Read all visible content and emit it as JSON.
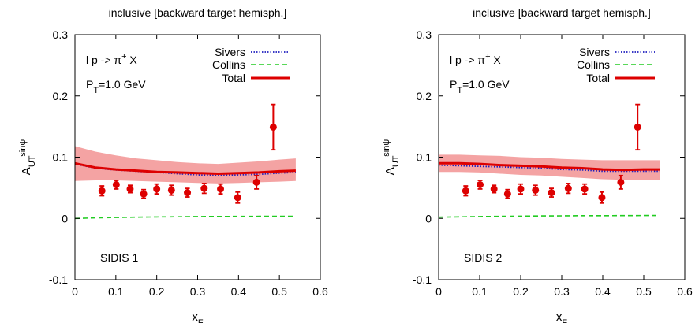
{
  "chart_data": [
    {
      "type": "line",
      "title": "inclusive [backward target hemisph.]",
      "xlabel": "x",
      "xlabel_sub": "F",
      "ylabel": "A",
      "ylabel_sup": "sinψ",
      "ylabel_sub": "UT",
      "xlim": [
        0,
        0.6
      ],
      "ylim": [
        -0.1,
        0.3
      ],
      "xticks": [
        "0",
        "0.1",
        "0.2",
        "0.3",
        "0.4",
        "0.5",
        "0.6"
      ],
      "yticks": [
        "-0.1",
        "0",
        "0.1",
        "0.2",
        "0.3"
      ],
      "legend_position": "top-right",
      "annotations": {
        "reaction": "l p -> π",
        "reaction_sup": "+",
        "reaction_tail": " X",
        "pt_label": "P",
        "pt_sub": "T",
        "pt_value": "=1.0 GeV",
        "dataset": "SIDIS 1"
      },
      "x": [
        0.0,
        0.05,
        0.1,
        0.15,
        0.2,
        0.25,
        0.3,
        0.35,
        0.4,
        0.45,
        0.5,
        0.54
      ],
      "band": {
        "color": "#f4a3a3",
        "upper": [
          0.118,
          0.109,
          0.103,
          0.098,
          0.095,
          0.092,
          0.09,
          0.089,
          0.091,
          0.093,
          0.096,
          0.098
        ],
        "lower": [
          0.061,
          0.062,
          0.062,
          0.061,
          0.06,
          0.059,
          0.058,
          0.057,
          0.058,
          0.059,
          0.06,
          0.061
        ]
      },
      "series": [
        {
          "name": "Sivers",
          "color": "#1f1fbf",
          "style": "dotted",
          "values": [
            0.089,
            0.082,
            0.079,
            0.077,
            0.075,
            0.073,
            0.071,
            0.07,
            0.071,
            0.072,
            0.074,
            0.075
          ]
        },
        {
          "name": "Collins",
          "color": "#22cc22",
          "style": "dashed",
          "values": [
            0.0,
            0.0008,
            0.0015,
            0.002,
            0.0024,
            0.0027,
            0.003,
            0.0032,
            0.0033,
            0.0034,
            0.0035,
            0.0035
          ]
        },
        {
          "name": "Total",
          "color": "#dd0000",
          "style": "solid",
          "values": [
            0.09,
            0.083,
            0.08,
            0.078,
            0.076,
            0.075,
            0.074,
            0.073,
            0.074,
            0.075,
            0.077,
            0.078
          ]
        }
      ],
      "points": {
        "color": "#dd0000",
        "x": [
          0.066,
          0.101,
          0.135,
          0.168,
          0.2,
          0.236,
          0.275,
          0.316,
          0.356,
          0.398,
          0.444,
          0.485
        ],
        "y": [
          0.045,
          0.055,
          0.048,
          0.04,
          0.048,
          0.046,
          0.042,
          0.049,
          0.048,
          0.034,
          0.059,
          0.149
        ],
        "err": [
          0.008,
          0.007,
          0.006,
          0.007,
          0.008,
          0.008,
          0.007,
          0.008,
          0.008,
          0.009,
          0.011,
          0.037
        ]
      }
    },
    {
      "type": "line",
      "title": "inclusive [backward target hemisph.]",
      "xlabel": "x",
      "xlabel_sub": "F",
      "ylabel": "A",
      "ylabel_sup": "sinψ",
      "ylabel_sub": "UT",
      "xlim": [
        0,
        0.6
      ],
      "ylim": [
        -0.1,
        0.3
      ],
      "xticks": [
        "0",
        "0.1",
        "0.2",
        "0.3",
        "0.4",
        "0.5",
        "0.6"
      ],
      "yticks": [
        "-0.1",
        "0",
        "0.1",
        "0.2",
        "0.3"
      ],
      "legend_position": "top-right",
      "annotations": {
        "reaction": "l p -> π",
        "reaction_sup": "+",
        "reaction_tail": " X",
        "pt_label": "P",
        "pt_sub": "T",
        "pt_value": "=1.0 GeV",
        "dataset": "SIDIS 2"
      },
      "x": [
        0.0,
        0.05,
        0.1,
        0.15,
        0.2,
        0.25,
        0.3,
        0.35,
        0.4,
        0.45,
        0.5,
        0.54
      ],
      "band": {
        "color": "#f4a3a3",
        "upper": [
          0.104,
          0.104,
          0.103,
          0.102,
          0.1,
          0.099,
          0.097,
          0.096,
          0.095,
          0.095,
          0.095,
          0.095
        ],
        "lower": [
          0.076,
          0.076,
          0.075,
          0.073,
          0.071,
          0.07,
          0.068,
          0.066,
          0.064,
          0.063,
          0.063,
          0.063
        ]
      },
      "series": [
        {
          "name": "Sivers",
          "color": "#1f1fbf",
          "style": "dotted",
          "values": [
            0.087,
            0.086,
            0.085,
            0.084,
            0.083,
            0.082,
            0.08,
            0.079,
            0.077,
            0.077,
            0.077,
            0.077
          ]
        },
        {
          "name": "Collins",
          "color": "#22cc22",
          "style": "dashed",
          "values": [
            0.002,
            0.0025,
            0.003,
            0.0034,
            0.0037,
            0.004,
            0.0042,
            0.0044,
            0.0045,
            0.0046,
            0.0047,
            0.0047
          ]
        },
        {
          "name": "Total",
          "color": "#dd0000",
          "style": "solid",
          "values": [
            0.09,
            0.09,
            0.089,
            0.087,
            0.086,
            0.085,
            0.083,
            0.082,
            0.08,
            0.079,
            0.08,
            0.08
          ]
        }
      ],
      "points": {
        "color": "#dd0000",
        "x": [
          0.066,
          0.101,
          0.135,
          0.168,
          0.2,
          0.236,
          0.275,
          0.316,
          0.356,
          0.398,
          0.444,
          0.485
        ],
        "y": [
          0.045,
          0.055,
          0.048,
          0.04,
          0.048,
          0.046,
          0.042,
          0.049,
          0.048,
          0.034,
          0.059,
          0.149
        ],
        "err": [
          0.008,
          0.007,
          0.006,
          0.007,
          0.008,
          0.008,
          0.007,
          0.008,
          0.008,
          0.009,
          0.011,
          0.037
        ]
      }
    }
  ]
}
